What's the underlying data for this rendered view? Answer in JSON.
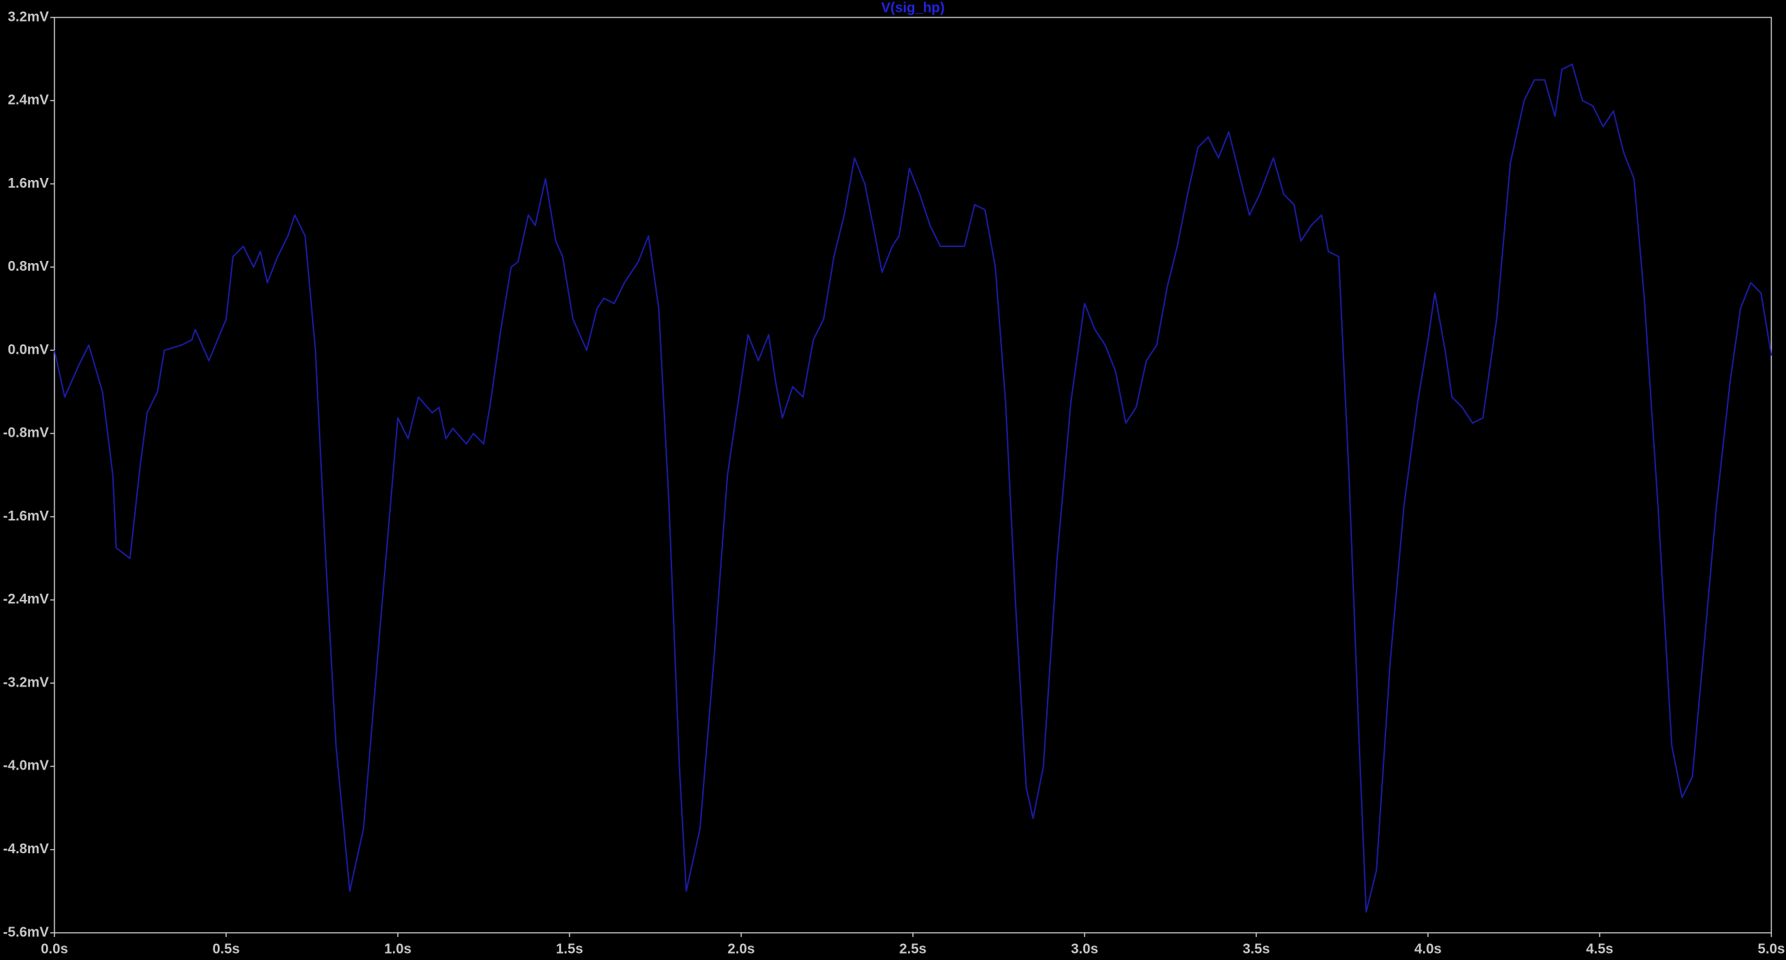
{
  "chart_data": {
    "type": "line",
    "series": [
      {
        "name": "V(sig_hp)",
        "color": "#1c1ca8",
        "values": [
          0.0,
          -0.45,
          -0.15,
          0.05,
          -0.4,
          -1.2,
          -1.9,
          -1.95,
          -2.0,
          -1.1,
          -0.6,
          -0.4,
          0.0,
          0.05,
          0.1,
          0.2,
          -0.1,
          0.3,
          0.9,
          1.0,
          0.8,
          0.95,
          0.65,
          0.9,
          1.1,
          1.3,
          1.1,
          0.0,
          -2.0,
          -3.8,
          -5.2,
          -4.6,
          -2.6,
          -0.65,
          -0.85,
          -0.45,
          -0.6,
          -0.55,
          -0.85,
          -0.75,
          -0.9,
          -0.8,
          -0.9,
          -0.5,
          0.2,
          0.8,
          0.85,
          1.3,
          1.2,
          1.65,
          1.05,
          0.9,
          0.3,
          0.0,
          0.4,
          0.5,
          0.45,
          0.65,
          0.85,
          1.1,
          0.4,
          -1.5,
          -4.0,
          -5.2,
          -4.6,
          -3.0,
          -1.2,
          -0.3,
          0.15,
          -0.1,
          0.15,
          -0.3,
          -0.65,
          -0.35,
          -0.45,
          0.1,
          0.3,
          0.9,
          1.3,
          1.85,
          1.6,
          1.1,
          0.75,
          1.0,
          1.1,
          1.75,
          1.5,
          1.2,
          1.0,
          1.0,
          1.0,
          1.4,
          1.35,
          0.8,
          -0.5,
          -2.5,
          -4.2,
          -4.5,
          -4.0,
          -2.0,
          -0.5,
          0.45,
          0.2,
          0.05,
          -0.2,
          -0.7,
          -0.55,
          -0.1,
          0.05,
          0.6,
          1.0,
          1.5,
          1.95,
          2.05,
          1.85,
          2.1,
          1.7,
          1.3,
          1.5,
          1.85,
          1.5,
          1.4,
          1.05,
          1.2,
          1.3,
          0.95,
          0.9,
          -1.2,
          -3.8,
          -5.4,
          -5.0,
          -3.0,
          -1.5,
          -0.5,
          0.1,
          0.55,
          0.0,
          -0.45,
          -0.55,
          -0.7,
          -0.65,
          0.3,
          1.8,
          2.4,
          2.6,
          2.6,
          2.25,
          2.7,
          2.75,
          2.4,
          2.35,
          2.15,
          2.3,
          1.9,
          1.65,
          0.5,
          -1.5,
          -3.8,
          -4.3,
          -4.1,
          -3.0,
          -1.5,
          -0.3,
          0.4,
          0.65,
          0.55,
          -0.05
        ]
      }
    ],
    "x": [
      0.0,
      0.03,
      0.07,
      0.1,
      0.14,
      0.17,
      0.18,
      0.2,
      0.22,
      0.25,
      0.27,
      0.3,
      0.32,
      0.37,
      0.4,
      0.41,
      0.45,
      0.5,
      0.52,
      0.55,
      0.58,
      0.6,
      0.62,
      0.65,
      0.68,
      0.7,
      0.73,
      0.76,
      0.79,
      0.82,
      0.86,
      0.9,
      0.95,
      1.0,
      1.03,
      1.06,
      1.1,
      1.12,
      1.14,
      1.16,
      1.2,
      1.22,
      1.25,
      1.27,
      1.3,
      1.33,
      1.35,
      1.38,
      1.4,
      1.43,
      1.46,
      1.48,
      1.51,
      1.55,
      1.58,
      1.6,
      1.63,
      1.66,
      1.7,
      1.73,
      1.76,
      1.79,
      1.82,
      1.84,
      1.88,
      1.92,
      1.96,
      2.0,
      2.02,
      2.05,
      2.08,
      2.1,
      2.12,
      2.15,
      2.18,
      2.21,
      2.24,
      2.27,
      2.3,
      2.33,
      2.36,
      2.39,
      2.41,
      2.44,
      2.46,
      2.49,
      2.52,
      2.55,
      2.58,
      2.61,
      2.65,
      2.68,
      2.71,
      2.74,
      2.77,
      2.8,
      2.83,
      2.85,
      2.88,
      2.92,
      2.96,
      3.0,
      3.03,
      3.06,
      3.09,
      3.12,
      3.15,
      3.18,
      3.21,
      3.24,
      3.27,
      3.3,
      3.33,
      3.36,
      3.39,
      3.42,
      3.45,
      3.48,
      3.51,
      3.55,
      3.58,
      3.61,
      3.63,
      3.66,
      3.69,
      3.71,
      3.74,
      3.77,
      3.8,
      3.82,
      3.85,
      3.89,
      3.93,
      3.97,
      4.0,
      4.02,
      4.05,
      4.07,
      4.1,
      4.13,
      4.16,
      4.2,
      4.24,
      4.28,
      4.31,
      4.34,
      4.37,
      4.39,
      4.42,
      4.45,
      4.48,
      4.51,
      4.54,
      4.57,
      4.6,
      4.63,
      4.67,
      4.71,
      4.74,
      4.77,
      4.8,
      4.84,
      4.88,
      4.91,
      4.94,
      4.97,
      5.0
    ],
    "xlim": [
      0,
      5
    ],
    "xticks": [
      {
        "value": 0,
        "label": "0.0s"
      },
      {
        "value": 0.5,
        "label": "0.5s"
      },
      {
        "value": 1,
        "label": "1.0s"
      },
      {
        "value": 1.5,
        "label": "1.5s"
      },
      {
        "value": 2,
        "label": "2.0s"
      },
      {
        "value": 2.5,
        "label": "2.5s"
      },
      {
        "value": 3,
        "label": "3.0s"
      },
      {
        "value": 3.5,
        "label": "3.5s"
      },
      {
        "value": 4,
        "label": "4.0s"
      },
      {
        "value": 4.5,
        "label": "4.5s"
      },
      {
        "value": 5,
        "label": "5.0s"
      }
    ],
    "ylim": [
      -5.6,
      3.2
    ],
    "yticks": [
      {
        "value": 3.2,
        "label": "3.2mV"
      },
      {
        "value": 2.4,
        "label": "2.4mV"
      },
      {
        "value": 1.6,
        "label": "1.6mV"
      },
      {
        "value": 0.8,
        "label": "0.8mV"
      },
      {
        "value": 0,
        "label": "0.0mV"
      },
      {
        "value": -0.8,
        "label": "-0.8mV"
      },
      {
        "value": -1.6,
        "label": "-1.6mV"
      },
      {
        "value": -2.4,
        "label": "-2.4mV"
      },
      {
        "value": -3.2,
        "label": "-3.2mV"
      },
      {
        "value": -4,
        "label": "-4.0mV"
      },
      {
        "value": -4.8,
        "label": "-4.8mV"
      },
      {
        "value": -5.6,
        "label": "-5.6mV"
      }
    ]
  }
}
